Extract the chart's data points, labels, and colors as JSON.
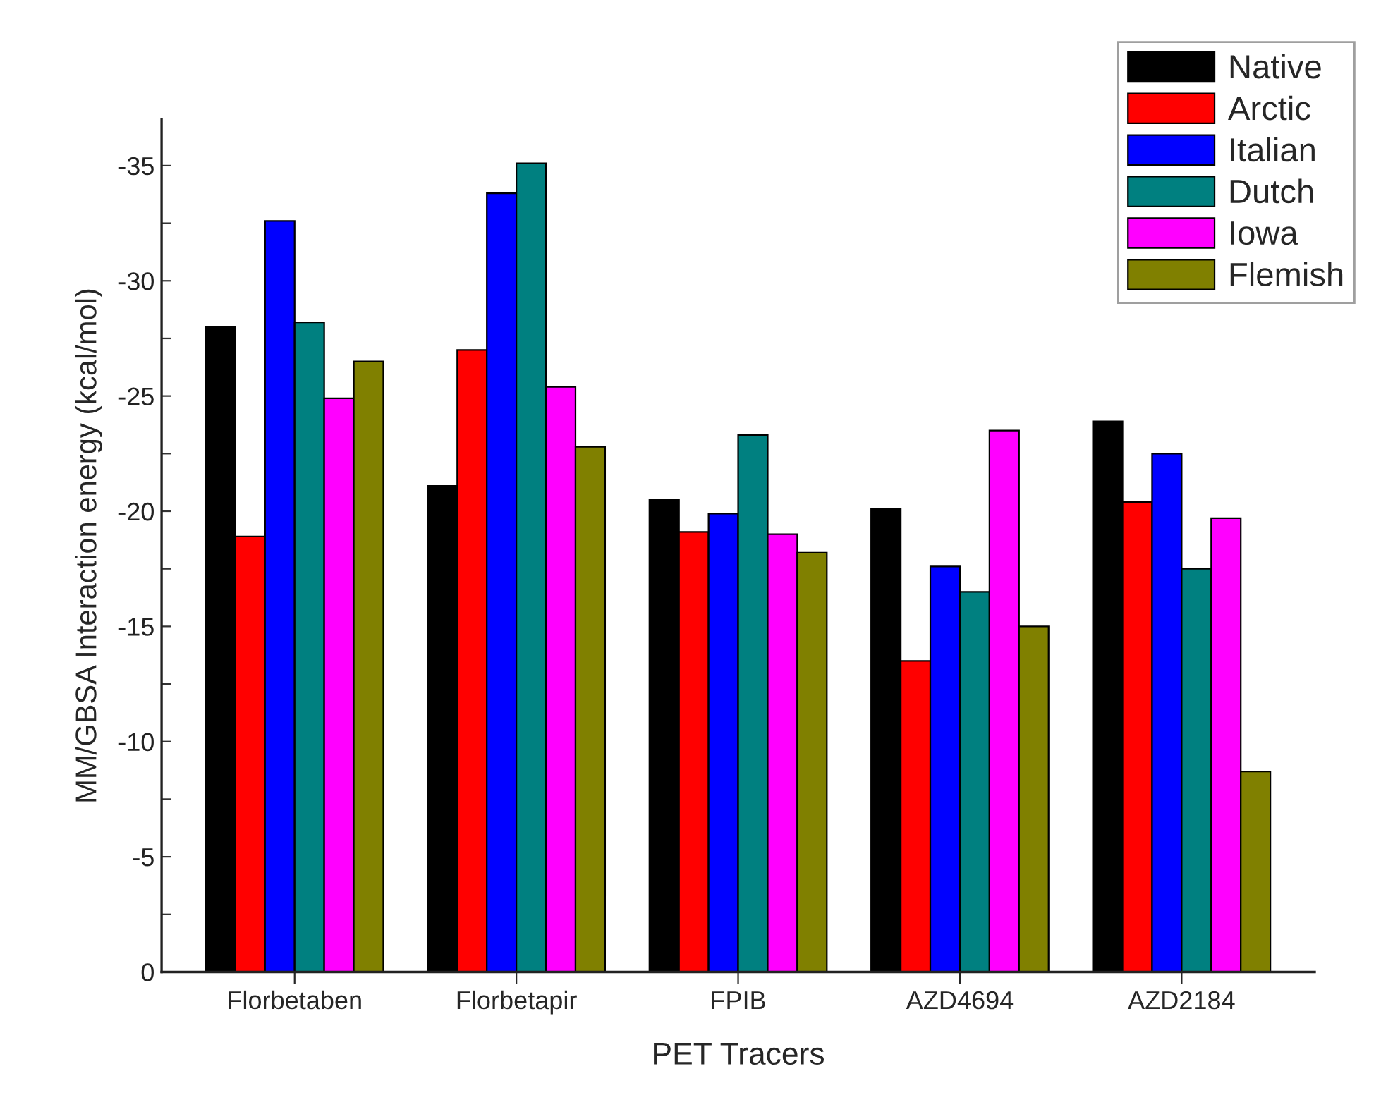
{
  "chart_data": {
    "type": "bar",
    "xlabel": "PET Tracers",
    "ylabel": "MM/GBSA Interaction energy (kcal/mol)",
    "categories": [
      "Florbetaben",
      "Florbetapir",
      "FPIB",
      "AZD4694",
      "AZD2184"
    ],
    "series": [
      {
        "name": "Native",
        "color": "#000000",
        "values": [
          -28.0,
          -21.1,
          -20.5,
          -20.1,
          -23.9
        ]
      },
      {
        "name": "Arctic",
        "color": "#ff0000",
        "values": [
          -18.9,
          -27.0,
          -19.1,
          -13.5,
          -20.4
        ]
      },
      {
        "name": "Italian",
        "color": "#0000ff",
        "values": [
          -32.6,
          -33.8,
          -19.9,
          -17.6,
          -22.5
        ]
      },
      {
        "name": "Dutch",
        "color": "#008080",
        "values": [
          -28.2,
          -35.1,
          -23.3,
          -16.5,
          -17.5
        ]
      },
      {
        "name": "Iowa",
        "color": "#ff00ff",
        "values": [
          -24.9,
          -25.4,
          -19.0,
          -23.5,
          -19.7
        ]
      },
      {
        "name": "Flemish",
        "color": "#808000",
        "values": [
          -26.5,
          -22.8,
          -18.2,
          -15.0,
          -8.7
        ]
      }
    ],
    "ylim": [
      0,
      -37
    ],
    "yticks": [
      0,
      {
        "value": -2.5,
        "label": null
      },
      -5,
      {
        "value": -7.5,
        "label": null
      },
      -10,
      {
        "value": -12.5,
        "label": null
      },
      -15,
      {
        "value": -17.5,
        "label": null
      },
      -20,
      {
        "value": -22.5,
        "label": null
      },
      -25,
      {
        "value": -27.5,
        "label": null
      },
      -30,
      {
        "value": -32.5,
        "label": null
      },
      -35
    ],
    "legend": "top right",
    "grid": false
  }
}
